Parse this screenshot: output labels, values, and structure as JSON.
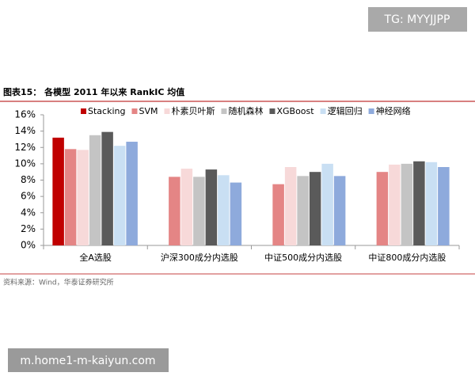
{
  "chart_data": {
    "type": "bar",
    "title": "图表15：  各模型 2011 年以来 RankIC 均值",
    "source": "资料来源：Wind，华泰证券研究所",
    "categories": [
      "全A选股",
      "沪深300成分内选股",
      "中证500成分内选股",
      "中证800成分内选股"
    ],
    "series": [
      {
        "name": "Stacking",
        "color": "#c00000",
        "values": [
          13.2,
          null,
          null,
          null
        ]
      },
      {
        "name": "SVM",
        "color": "#e48585",
        "values": [
          11.8,
          8.4,
          7.5,
          9.0
        ]
      },
      {
        "name": "朴素贝叶斯",
        "color": "#f7d9d9",
        "values": [
          11.7,
          9.4,
          9.6,
          9.9
        ]
      },
      {
        "name": "随机森林",
        "color": "#c4c4c4",
        "values": [
          13.5,
          8.4,
          8.5,
          10.0
        ]
      },
      {
        "name": "XGBoost",
        "color": "#5a5a5a",
        "values": [
          13.9,
          9.3,
          9.0,
          10.3
        ]
      },
      {
        "name": "逻辑回归",
        "color": "#c9dff3",
        "values": [
          12.2,
          8.6,
          10.0,
          10.2
        ]
      },
      {
        "name": "神经网络",
        "color": "#8eaadc",
        "values": [
          12.7,
          7.7,
          8.5,
          9.6
        ]
      }
    ],
    "ylim": [
      0,
      16
    ],
    "yticks": [
      {
        "value": 0,
        "label": "0%"
      },
      {
        "value": 2,
        "label": "2%"
      },
      {
        "value": 4,
        "label": "4%"
      },
      {
        "value": 6,
        "label": "6%"
      },
      {
        "value": 8,
        "label": "8%"
      },
      {
        "value": 10,
        "label": "10%"
      },
      {
        "value": 12,
        "label": "12%"
      },
      {
        "value": 14,
        "label": "14%"
      },
      {
        "value": 16,
        "label": "16%"
      }
    ],
    "grid": false
  },
  "overlay": {
    "tag": "TG: MYYJJPP",
    "url": "m.home1-m-kaiyun.com"
  }
}
